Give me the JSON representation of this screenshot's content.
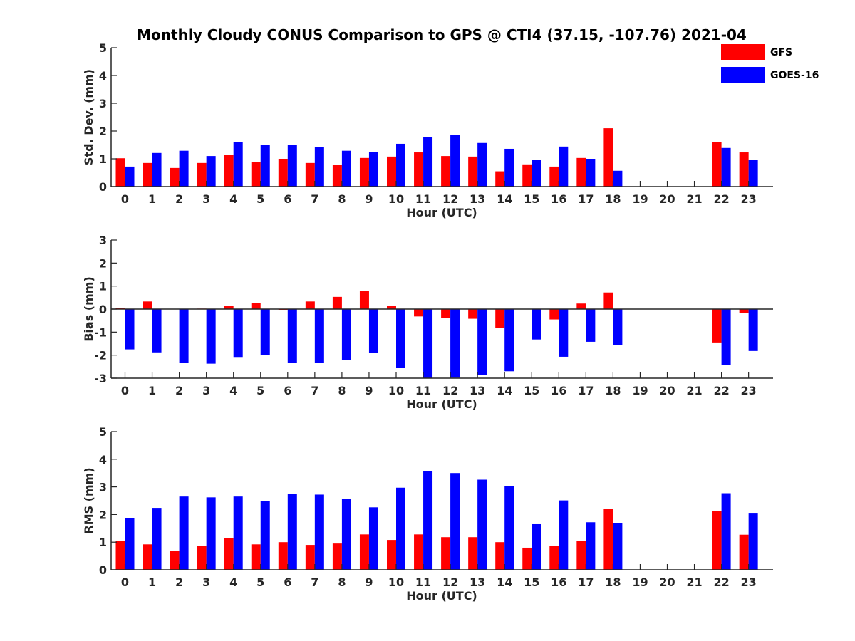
{
  "chart_title": "Monthly Cloudy CONUS Comparison to GPS @ CTI4 (37.15, -107.76) 2021-04",
  "legend": [
    {
      "name": "GFS",
      "color": "#ff0000"
    },
    {
      "name": "GOES-16",
      "color": "#0000ff"
    }
  ],
  "chart_data": [
    {
      "type": "bar",
      "xlabel": "Hour (UTC)",
      "ylabel": "Std. Dev. (mm)",
      "ylim": [
        0,
        5
      ],
      "yticks": [
        0,
        1,
        2,
        3,
        4,
        5
      ],
      "categories": [
        "0",
        "1",
        "2",
        "3",
        "4",
        "5",
        "6",
        "7",
        "8",
        "9",
        "10",
        "11",
        "12",
        "13",
        "14",
        "15",
        "16",
        "17",
        "18",
        "19",
        "20",
        "21",
        "22",
        "23"
      ],
      "series": [
        {
          "name": "GFS",
          "color": "#ff0000",
          "values": [
            1.02,
            0.85,
            0.67,
            0.85,
            1.13,
            0.88,
            1.0,
            0.85,
            0.77,
            1.03,
            1.08,
            1.23,
            1.1,
            1.08,
            0.55,
            0.8,
            0.72,
            1.03,
            2.1,
            null,
            null,
            null,
            1.6,
            1.23
          ]
        },
        {
          "name": "GOES-16",
          "color": "#0000ff",
          "values": [
            0.72,
            1.21,
            1.29,
            1.1,
            1.61,
            1.49,
            1.49,
            1.42,
            1.29,
            1.24,
            1.54,
            1.78,
            1.87,
            1.57,
            1.36,
            0.97,
            1.44,
            1.0,
            0.57,
            null,
            null,
            null,
            1.39,
            0.95
          ]
        }
      ]
    },
    {
      "type": "bar",
      "xlabel": "Hour (UTC)",
      "ylabel": "Bias (mm)",
      "ylim": [
        -3,
        3
      ],
      "yticks": [
        -3,
        -2,
        -1,
        0,
        1,
        2,
        3
      ],
      "categories": [
        "0",
        "1",
        "2",
        "3",
        "4",
        "5",
        "6",
        "7",
        "8",
        "9",
        "10",
        "11",
        "12",
        "13",
        "14",
        "15",
        "16",
        "17",
        "18",
        "19",
        "20",
        "21",
        "22",
        "23"
      ],
      "series": [
        {
          "name": "GFS",
          "color": "#ff0000",
          "values": [
            0.05,
            0.33,
            0.0,
            0.02,
            0.15,
            0.27,
            -0.03,
            0.33,
            0.53,
            0.78,
            0.13,
            -0.32,
            -0.38,
            -0.42,
            -0.83,
            0.0,
            -0.45,
            0.24,
            0.72,
            null,
            null,
            null,
            -1.45,
            -0.17
          ]
        },
        {
          "name": "GOES-16",
          "color": "#0000ff",
          "values": [
            -1.75,
            -1.88,
            -2.35,
            -2.37,
            -2.08,
            -2.0,
            -2.32,
            -2.35,
            -2.22,
            -1.9,
            -2.55,
            -3.0,
            -2.98,
            -2.87,
            -2.7,
            -1.32,
            -2.07,
            -1.42,
            -1.57,
            null,
            null,
            null,
            -2.42,
            -1.82
          ]
        }
      ]
    },
    {
      "type": "bar",
      "xlabel": "Hour (UTC)",
      "ylabel": "RMS (mm)",
      "ylim": [
        0,
        5
      ],
      "yticks": [
        0,
        1,
        2,
        3,
        4,
        5
      ],
      "categories": [
        "0",
        "1",
        "2",
        "3",
        "4",
        "5",
        "6",
        "7",
        "8",
        "9",
        "10",
        "11",
        "12",
        "13",
        "14",
        "15",
        "16",
        "17",
        "18",
        "19",
        "20",
        "21",
        "22",
        "23"
      ],
      "series": [
        {
          "name": "GFS",
          "color": "#ff0000",
          "values": [
            1.04,
            0.92,
            0.67,
            0.87,
            1.15,
            0.92,
            1.0,
            0.9,
            0.95,
            1.28,
            1.08,
            1.28,
            1.18,
            1.18,
            1.0,
            0.8,
            0.87,
            1.05,
            2.2,
            null,
            null,
            null,
            2.13,
            1.27
          ]
        },
        {
          "name": "GOES-16",
          "color": "#0000ff",
          "values": [
            1.87,
            2.24,
            2.65,
            2.62,
            2.65,
            2.49,
            2.74,
            2.72,
            2.57,
            2.26,
            2.97,
            3.56,
            3.5,
            3.26,
            3.03,
            1.65,
            2.51,
            1.72,
            1.69,
            null,
            null,
            null,
            2.77,
            2.06
          ]
        }
      ]
    }
  ]
}
